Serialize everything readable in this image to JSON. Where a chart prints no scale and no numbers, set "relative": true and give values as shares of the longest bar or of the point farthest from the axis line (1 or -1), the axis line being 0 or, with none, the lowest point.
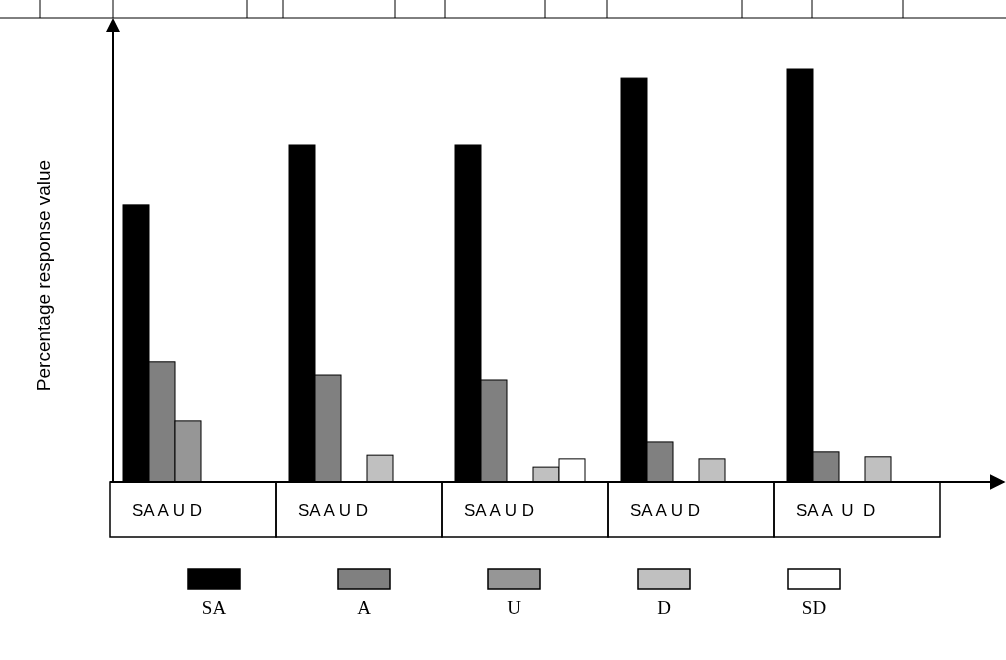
{
  "chart_data": {
    "type": "bar",
    "relative": true,
    "ylabel": "Percentage response value",
    "categories": [
      "SA A U D",
      "SA A U D",
      "SA A U D",
      "SA A U D",
      "SA A  U  D"
    ],
    "series": [
      {
        "name": "SA",
        "color": "#000000",
        "values": [
          0.671,
          0.816,
          0.816,
          0.978,
          1
        ]
      },
      {
        "name": "A",
        "color": "#808080",
        "values": [
          0.291,
          0.259,
          0.247,
          0.097,
          0.073
        ]
      },
      {
        "name": "U",
        "color": "#969696",
        "values": [
          0.148,
          null,
          null,
          null,
          null
        ]
      },
      {
        "name": "D",
        "color": "#c0c0c0",
        "values": [
          null,
          0.065,
          0.036,
          0.056,
          0.061
        ]
      },
      {
        "name": "SD",
        "color": "#ffffff",
        "values": [
          null,
          null,
          0.056,
          null,
          null
        ]
      }
    ],
    "legend": "bottom"
  }
}
